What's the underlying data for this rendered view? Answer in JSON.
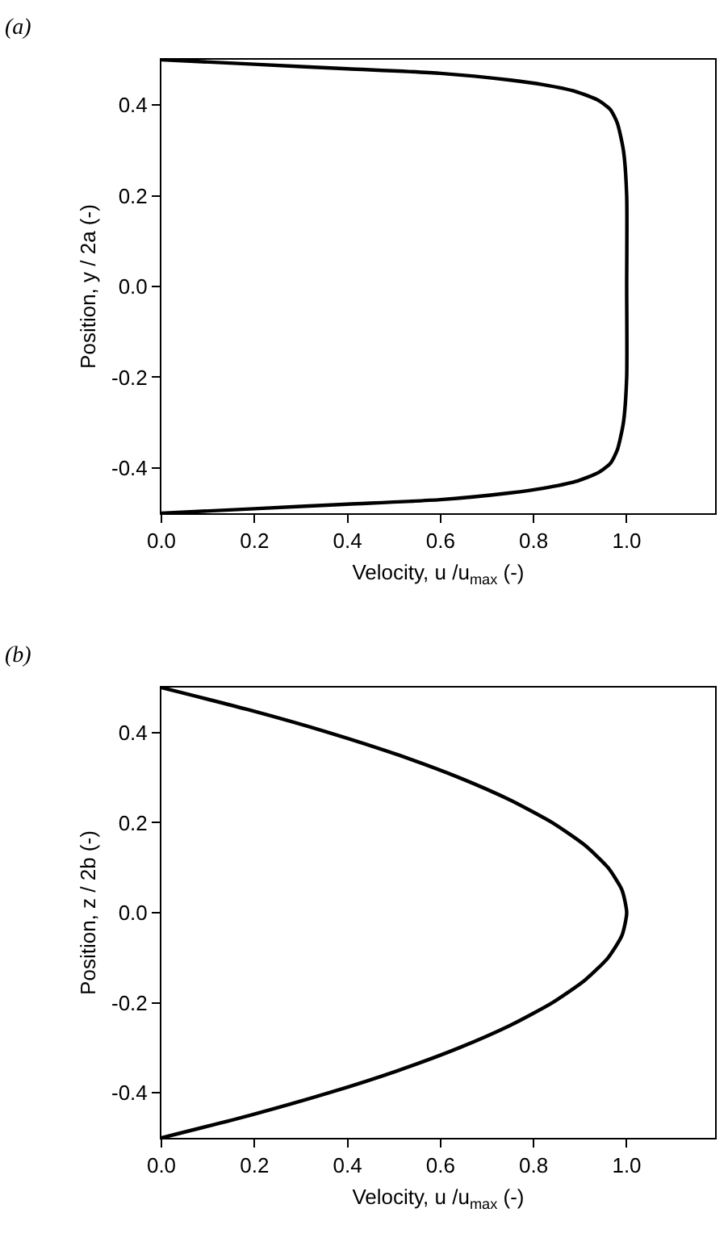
{
  "chart_data": [
    {
      "type": "line",
      "title": "(a)",
      "xlabel": "Velocity, u /u$_{max}$ (-)",
      "ylabel": "Position, y / 2a (-)",
      "xlim": [
        0,
        1.19
      ],
      "ylim": [
        -0.5,
        0.5
      ],
      "marker": "none",
      "line_style": "solid",
      "xticks": [
        {
          "value": 0,
          "label": "0.0"
        },
        {
          "value": 0.2,
          "label": "0.2"
        },
        {
          "value": 0.4,
          "label": "0.4"
        },
        {
          "value": 0.6,
          "label": "0.6"
        },
        {
          "value": 0.8,
          "label": "0.8"
        },
        {
          "value": 1.0,
          "label": "1.0"
        }
      ],
      "yticks": [
        {
          "value": -0.4,
          "label": "-0.4"
        },
        {
          "value": -0.2,
          "label": "-0.2"
        },
        {
          "value": 0,
          "label": "0.0"
        },
        {
          "value": 0.2,
          "label": "0.2"
        },
        {
          "value": 0.4,
          "label": "0.4"
        }
      ],
      "series": [
        {
          "color": "#000000",
          "x": [
            0,
            0.2,
            0.4,
            0.6,
            0.75,
            0.82,
            0.89,
            0.94,
            0.965,
            0.98,
            0.993,
            1.0,
            1.0,
            1.0,
            0.993,
            0.98,
            0.965,
            0.94,
            0.89,
            0.82,
            0.75,
            0.6,
            0.4,
            0.2,
            0
          ],
          "values": [
            0.5,
            0.49,
            0.48,
            0.47,
            0.455,
            0.445,
            0.43,
            0.41,
            0.39,
            0.36,
            0.3,
            0.2,
            0,
            -0.2,
            -0.3,
            -0.36,
            -0.39,
            -0.41,
            -0.43,
            -0.445,
            -0.455,
            -0.47,
            -0.48,
            -0.49,
            -0.5
          ]
        }
      ]
    },
    {
      "type": "line",
      "title": "(b)",
      "xlabel": "Velocity, u /u$_{max}$ (-)",
      "ylabel": "Position, z / 2b (-)",
      "xlim": [
        0,
        1.19
      ],
      "ylim": [
        -0.5,
        0.5
      ],
      "marker": "none",
      "line_style": "solid",
      "xticks": [
        {
          "value": 0,
          "label": "0.0"
        },
        {
          "value": 0.2,
          "label": "0.2"
        },
        {
          "value": 0.4,
          "label": "0.4"
        },
        {
          "value": 0.6,
          "label": "0.6"
        },
        {
          "value": 0.8,
          "label": "0.8"
        },
        {
          "value": 1.0,
          "label": "1.0"
        }
      ],
      "yticks": [
        {
          "value": -0.4,
          "label": "-0.4"
        },
        {
          "value": -0.2,
          "label": "-0.2"
        },
        {
          "value": 0,
          "label": "0.0"
        },
        {
          "value": 0.2,
          "label": "0.2"
        },
        {
          "value": 0.4,
          "label": "0.4"
        }
      ],
      "series": [
        {
          "color": "#000000",
          "x": [
            0,
            0.19,
            0.36,
            0.51,
            0.64,
            0.75,
            0.84,
            0.91,
            0.96,
            0.99,
            1.0,
            0.99,
            0.96,
            0.91,
            0.84,
            0.75,
            0.64,
            0.51,
            0.36,
            0.19,
            0
          ],
          "values": [
            0.5,
            0.45,
            0.4,
            0.35,
            0.3,
            0.25,
            0.2,
            0.15,
            0.1,
            0.05,
            0,
            -0.05,
            -0.1,
            -0.15,
            -0.2,
            -0.25,
            -0.3,
            -0.35,
            -0.4,
            -0.45,
            -0.5
          ]
        }
      ]
    }
  ]
}
